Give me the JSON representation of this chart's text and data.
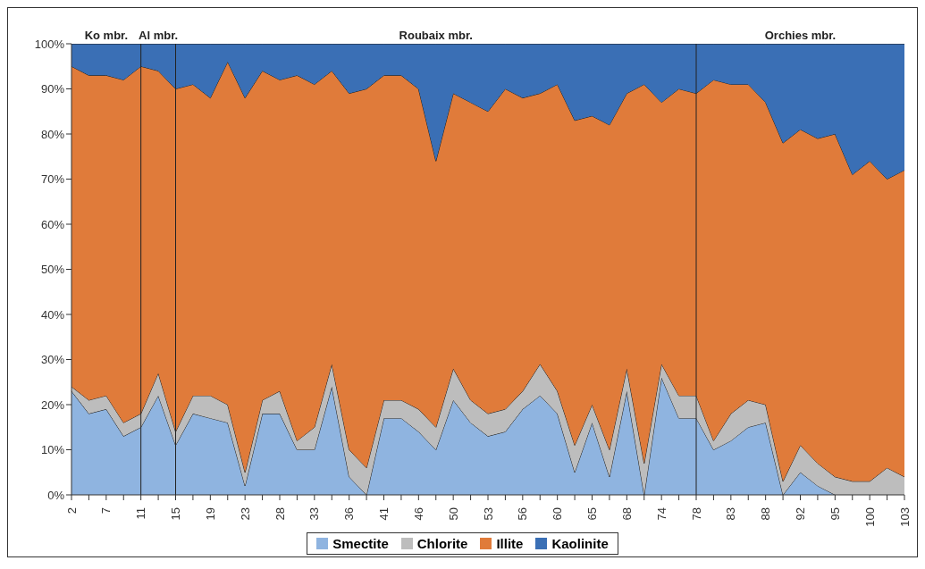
{
  "chart_data": {
    "type": "area",
    "stacked": true,
    "categories": [
      "2",
      null,
      "7",
      null,
      "11",
      null,
      "15",
      null,
      "19",
      null,
      "23",
      null,
      "28",
      null,
      "33",
      null,
      "36",
      null,
      "41",
      null,
      "46",
      null,
      "50",
      null,
      "53",
      null,
      "56",
      null,
      "60",
      null,
      "65",
      null,
      "68",
      null,
      "74",
      null,
      "78",
      null,
      "83",
      null,
      "88",
      null,
      "92",
      null,
      "95",
      null,
      "100",
      null,
      "103"
    ],
    "series": [
      {
        "name": "Smectite",
        "color": "#8fb4e0",
        "values": [
          23,
          18,
          19,
          13,
          15,
          22,
          11,
          18,
          17,
          16,
          2,
          18,
          18,
          10,
          10,
          24,
          4,
          0,
          17,
          17,
          14,
          10,
          21,
          16,
          13,
          14,
          19,
          22,
          18,
          5,
          16,
          4,
          23,
          0,
          26,
          17,
          17,
          10,
          12,
          15,
          16,
          0,
          5,
          2,
          0,
          0,
          0,
          0,
          0
        ]
      },
      {
        "name": "Chlorite",
        "color": "#bdbdbd",
        "values": [
          1,
          3,
          3,
          3,
          3,
          5,
          3,
          4,
          5,
          4,
          3,
          3,
          5,
          2,
          5,
          5,
          6,
          6,
          4,
          4,
          5,
          5,
          7,
          5,
          5,
          5,
          4,
          7,
          5,
          6,
          4,
          6,
          5,
          7,
          3,
          5,
          5,
          2,
          6,
          6,
          4,
          3,
          6,
          5,
          4,
          3,
          3,
          6,
          4
        ]
      },
      {
        "name": "Illite",
        "color": "#e07b3a",
        "values": [
          71,
          72,
          71,
          76,
          77,
          67,
          76,
          69,
          66,
          76,
          83,
          73,
          69,
          81,
          76,
          65,
          79,
          84,
          72,
          72,
          71,
          59,
          61,
          66,
          67,
          71,
          65,
          60,
          68,
          72,
          64,
          72,
          61,
          84,
          58,
          68,
          67,
          80,
          73,
          70,
          67,
          75,
          70,
          72,
          76,
          68,
          71,
          64,
          68
        ]
      },
      {
        "name": "Kaolinite",
        "color": "#3a6fb5",
        "values": [
          5,
          7,
          7,
          8,
          5,
          6,
          10,
          9,
          12,
          4,
          12,
          6,
          8,
          7,
          9,
          6,
          11,
          10,
          7,
          7,
          10,
          26,
          11,
          13,
          15,
          10,
          12,
          11,
          9,
          17,
          16,
          18,
          11,
          9,
          13,
          10,
          11,
          8,
          9,
          9,
          13,
          22,
          19,
          21,
          20,
          29,
          26,
          30,
          28
        ]
      }
    ],
    "ylim": [
      0,
      100
    ],
    "yticks": [
      {
        "value": 0,
        "label": "0%"
      },
      {
        "value": 10,
        "label": "10%"
      },
      {
        "value": 20,
        "label": "20%"
      },
      {
        "value": 30,
        "label": "30%"
      },
      {
        "value": 40,
        "label": "40%"
      },
      {
        "value": 50,
        "label": "50%"
      },
      {
        "value": 60,
        "label": "60%"
      },
      {
        "value": 70,
        "label": "70%"
      },
      {
        "value": 80,
        "label": "80%"
      },
      {
        "value": 90,
        "label": "90%"
      },
      {
        "value": 100,
        "label": "100%"
      }
    ],
    "ref_lines": [
      {
        "axis": "x",
        "value": "11",
        "color": "#222222"
      },
      {
        "axis": "x",
        "value": "15",
        "color": "#222222"
      },
      {
        "axis": "x",
        "value": "78",
        "color": "#222222"
      }
    ],
    "annotations": [
      "Ko mbr.",
      "Al mbr.",
      "Roubaix mbr.",
      "Orchies mbr."
    ],
    "grid": false,
    "legend": "bottom"
  }
}
